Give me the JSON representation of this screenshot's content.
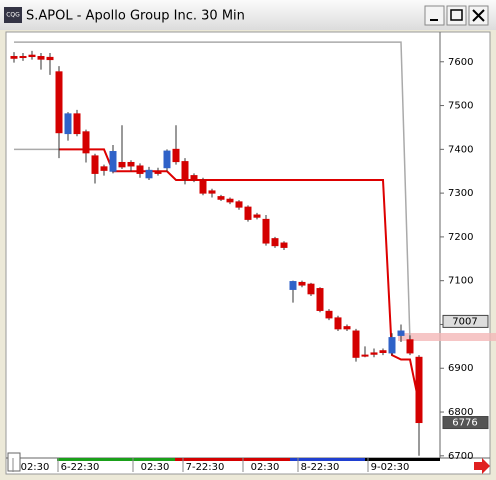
{
  "window": {
    "icon": "CQG",
    "title": "S.APOL - Apollo Group Inc. 30 Min"
  },
  "chart_data": {
    "type": "candlestick",
    "up_color": "#2f62c8",
    "down_color": "#d40000",
    "open": [
      7612,
      7612,
      7615,
      7612,
      7610,
      7577,
      7436,
      7481,
      7440,
      7385,
      7360,
      7350,
      7370,
      7370,
      7362,
      7335,
      7350,
      7358,
      7400,
      7372,
      7340,
      7330,
      7305,
      7292,
      7286,
      7280,
      7268,
      7250,
      7240,
      7196,
      7186,
      7080,
      7096,
      7092,
      7082,
      7030,
      7015,
      6995,
      6985,
      6930,
      6935,
      6940,
      6935,
      6975,
      6965,
      6925
    ],
    "high": [
      7622,
      7620,
      7625,
      7620,
      7620,
      7590,
      7485,
      7490,
      7445,
      7390,
      7365,
      7410,
      7455,
      7375,
      7368,
      7360,
      7358,
      7400,
      7455,
      7380,
      7345,
      7335,
      7310,
      7296,
      7290,
      7284,
      7272,
      7255,
      7250,
      7200,
      7190,
      7100,
      7100,
      7095,
      7085,
      7035,
      7020,
      7000,
      6990,
      6950,
      6945,
      6945,
      6980,
      7000,
      6975,
      6930
    ],
    "low": [
      7598,
      7602,
      7605,
      7582,
      7570,
      7380,
      7420,
      7430,
      7370,
      7322,
      7340,
      7345,
      7355,
      7350,
      7335,
      7330,
      7340,
      7350,
      7365,
      7320,
      7325,
      7295,
      7290,
      7282,
      7275,
      7262,
      7235,
      7240,
      7180,
      7175,
      7170,
      7050,
      7085,
      7065,
      7028,
      7010,
      6985,
      6985,
      6915,
      6925,
      6925,
      6930,
      6930,
      6960,
      6930,
      6700
    ],
    "close": [
      7608,
      7610,
      7612,
      7606,
      7605,
      7438,
      7481,
      7436,
      7392,
      7345,
      7352,
      7395,
      7360,
      7362,
      7345,
      7352,
      7345,
      7396,
      7372,
      7332,
      7330,
      7300,
      7300,
      7286,
      7280,
      7268,
      7240,
      7245,
      7186,
      7180,
      7176,
      7098,
      7090,
      7070,
      7032,
      7015,
      6990,
      6990,
      6925,
      6928,
      6932,
      6936,
      6970,
      6985,
      6935,
      6776
    ],
    "series": [
      {
        "color": "#aaaaaa",
        "values": [
          7400,
          7400,
          7400,
          7400,
          7400,
          7400,
          null,
          null,
          null,
          null,
          null,
          null,
          null,
          null,
          null,
          null,
          null,
          null,
          null,
          null,
          null,
          null,
          null,
          null,
          null,
          null,
          null,
          null,
          null,
          null,
          null,
          null,
          null,
          null,
          null,
          null,
          null,
          null,
          null,
          null,
          null,
          null,
          null,
          null,
          null,
          null
        ]
      },
      {
        "color": "#aaaaaa",
        "values": [
          7645,
          7645,
          7645,
          7645,
          7645,
          7645,
          7645,
          7645,
          7645,
          7645,
          7645,
          7645,
          7645,
          7645,
          7645,
          7645,
          7645,
          7645,
          7645,
          7645,
          7645,
          7645,
          7645,
          7645,
          7645,
          7645,
          7645,
          7645,
          7645,
          7645,
          7645,
          7645,
          7645,
          7645,
          7645,
          7645,
          7645,
          7645,
          7645,
          7645,
          7645,
          7645,
          7645,
          7645,
          6960,
          null
        ]
      },
      {
        "color": "#dd0000",
        "values": [
          null,
          null,
          null,
          null,
          null,
          7400,
          7400,
          7400,
          7400,
          7400,
          7400,
          7350,
          7350,
          7350,
          7350,
          7350,
          7350,
          7350,
          7330,
          7330,
          7330,
          7330,
          7330,
          7330,
          7330,
          7330,
          7330,
          7330,
          7330,
          7330,
          7330,
          7330,
          7330,
          7330,
          7330,
          7330,
          7330,
          7330,
          7330,
          7330,
          7330,
          7330,
          6930,
          6920,
          6920,
          6820
        ]
      }
    ],
    "ylim": [
      6695,
      7668
    ],
    "yticks": [
      6700,
      6800,
      6900,
      7000,
      7100,
      7200,
      7300,
      7400,
      7500,
      7600
    ],
    "price_markers": [
      7007,
      6776
    ],
    "x_labels": [
      "02:30",
      "6-22:30",
      "02:30",
      "7-22:30",
      "02:30",
      "8-22:30",
      "9-02:30"
    ]
  }
}
